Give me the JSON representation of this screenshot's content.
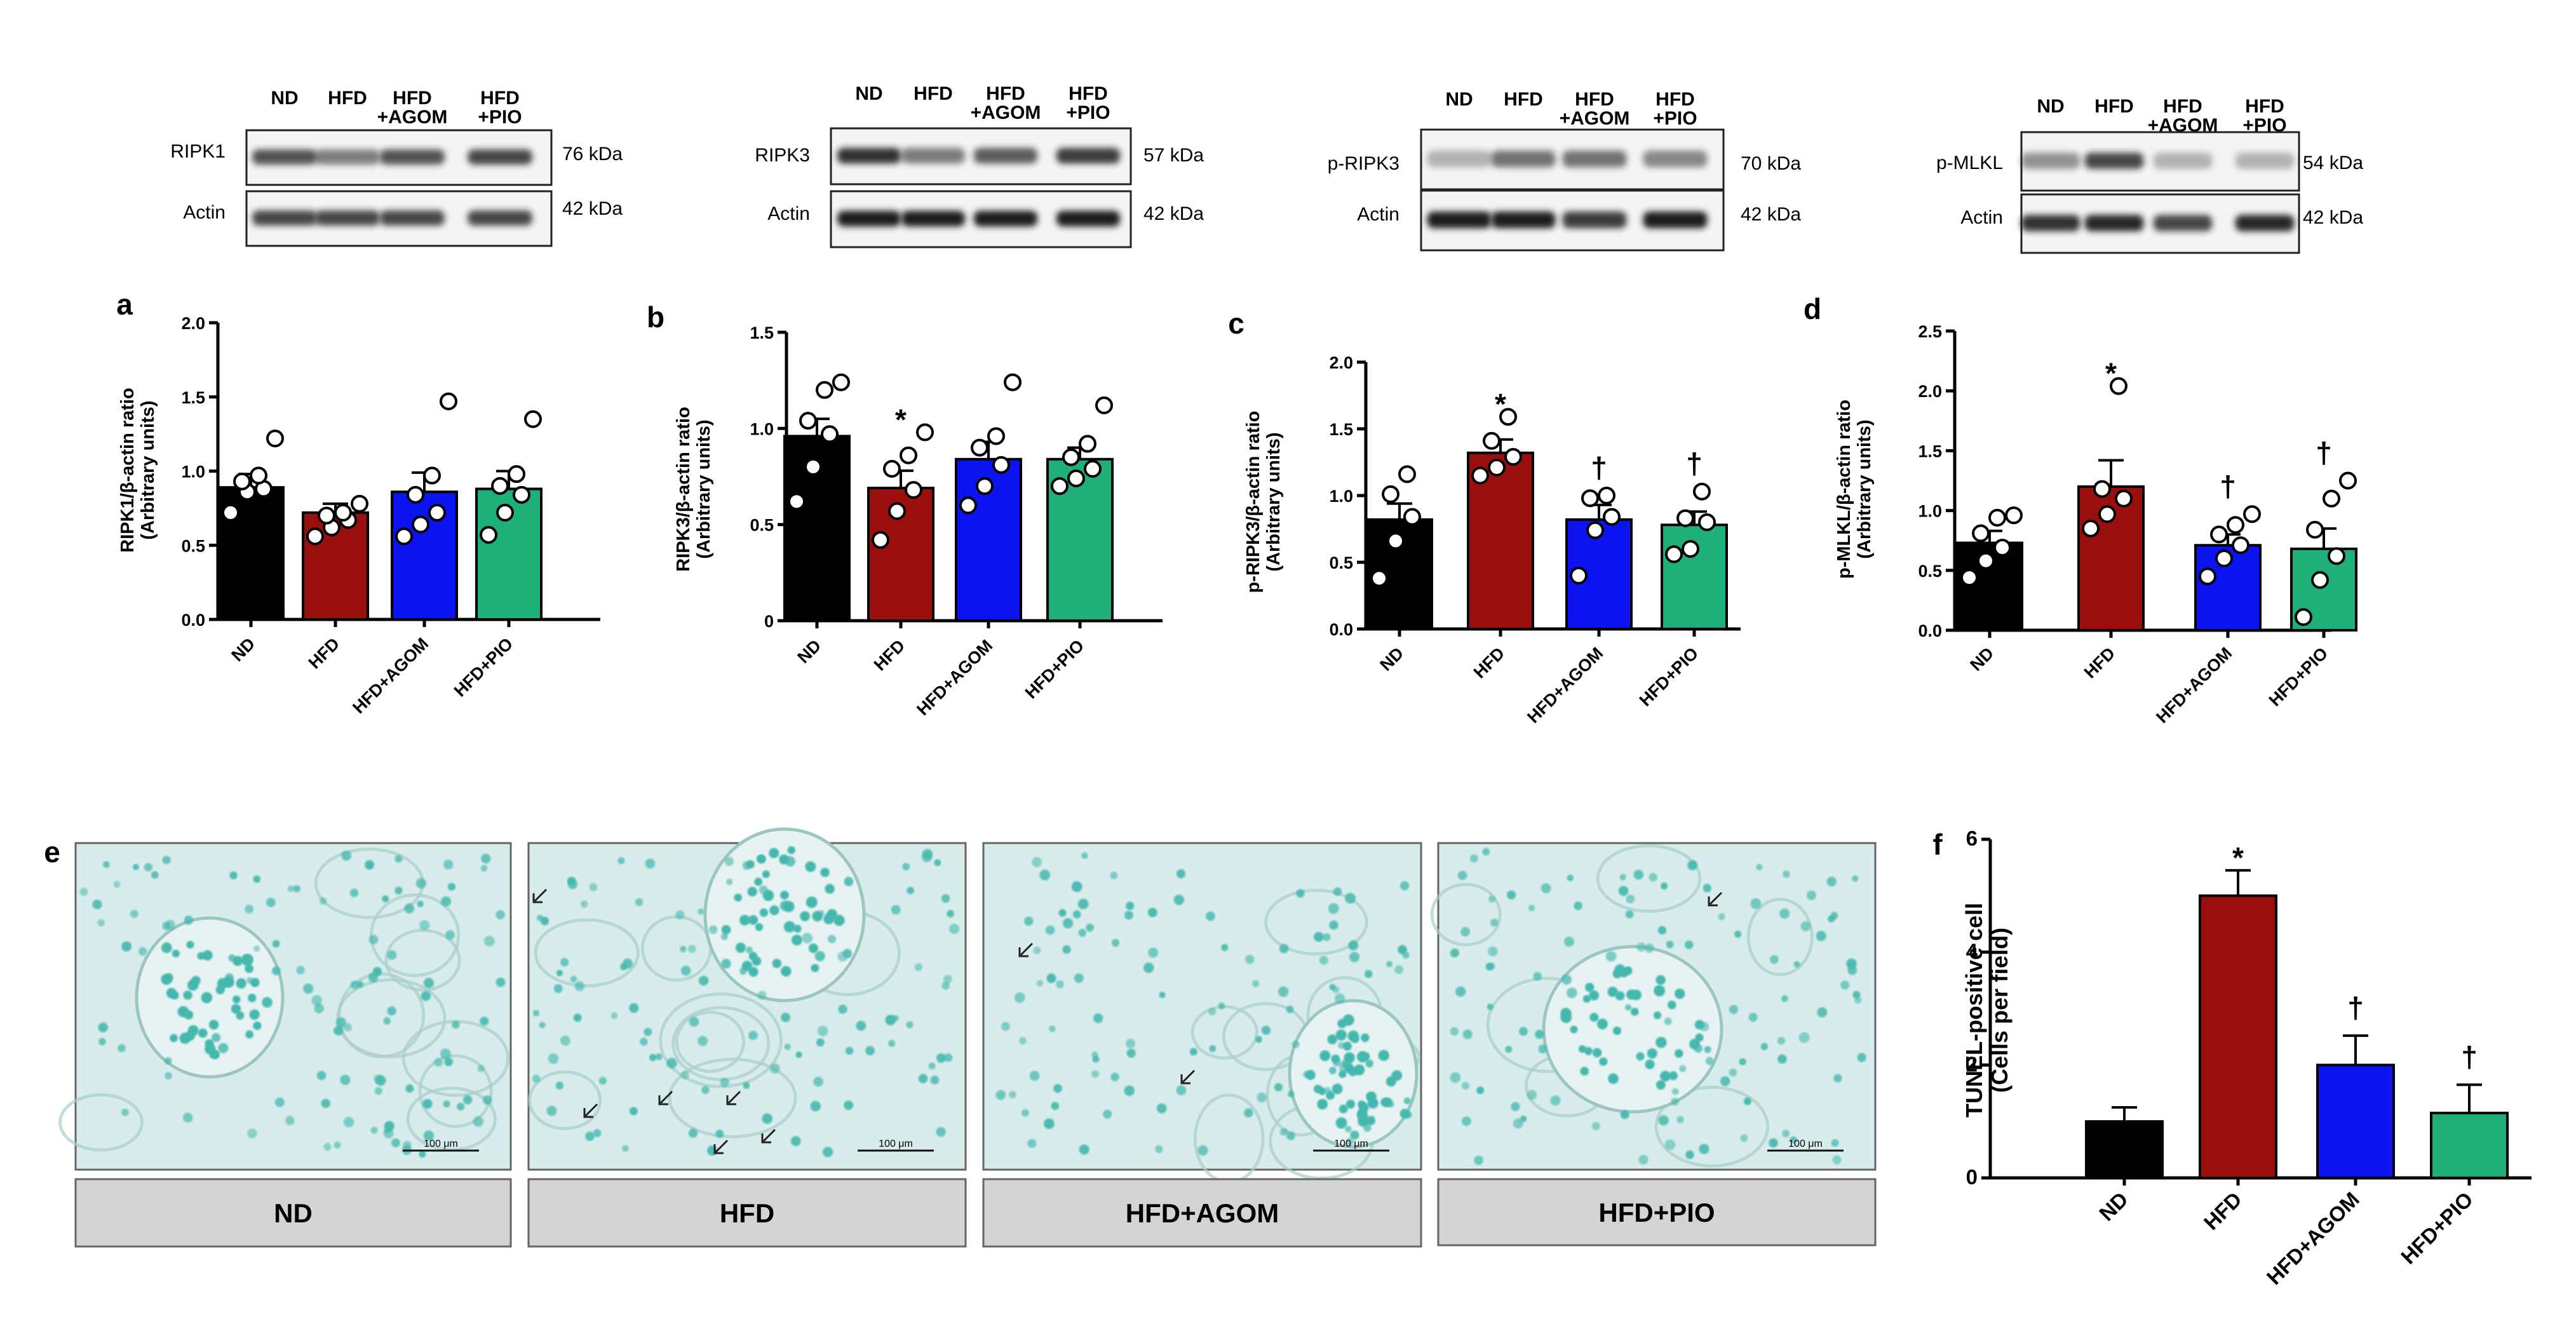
{
  "colors": {
    "ND": "#000000",
    "HFD": "#9b0e0e",
    "HFD+AGOM": "#0b14f0",
    "HFD+PIO": "#1fb07a",
    "micro_bg": "#d8ecec",
    "micro_nuclei": "#45b8ae",
    "caption_bg": "#d4d4d4"
  },
  "blots": [
    {
      "lanes": [
        "ND",
        "HFD",
        "HFD\n+AGOM",
        "HFD\n+PIO"
      ],
      "rows": [
        {
          "label": "RIPK1",
          "kda": "76 kDa"
        },
        {
          "label": "Actin",
          "kda": "42 kDa"
        }
      ]
    },
    {
      "lanes": [
        "ND",
        "HFD",
        "HFD\n+AGOM",
        "HFD\n+PIO"
      ],
      "rows": [
        {
          "label": "RIPK3",
          "kda": "57 kDa"
        },
        {
          "label": "Actin",
          "kda": "42 kDa"
        }
      ]
    },
    {
      "lanes": [
        "ND",
        "HFD",
        "HFD\n+AGOM",
        "HFD\n+PIO"
      ],
      "rows": [
        {
          "label": "p-RIPK3",
          "kda": "70 kDa"
        },
        {
          "label": "Actin",
          "kda": "42 kDa"
        }
      ]
    },
    {
      "lanes": [
        "ND",
        "HFD",
        "HFD\n+AGOM",
        "HFD\n+PIO"
      ],
      "rows": [
        {
          "label": "p-MLKL",
          "kda": "54 kDa"
        },
        {
          "label": "Actin",
          "kda": "42 kDa"
        }
      ]
    }
  ],
  "chart_data": [
    {
      "panel": "a",
      "type": "bar",
      "categories": [
        "ND",
        "HFD",
        "HFD+AGOM",
        "HFD+PIO"
      ],
      "values": [
        0.89,
        0.72,
        0.86,
        0.88
      ],
      "errors": [
        0.09,
        0.06,
        0.13,
        0.12
      ],
      "points": [
        [
          0.72,
          0.86,
          0.88,
          0.93,
          0.97,
          1.22
        ],
        [
          0.56,
          0.62,
          0.67,
          0.7,
          0.72,
          0.78
        ],
        [
          0.56,
          0.64,
          0.72,
          0.84,
          0.97,
          1.47
        ],
        [
          0.57,
          0.72,
          0.84,
          0.9,
          0.98,
          1.35
        ]
      ],
      "significance": [
        "",
        "",
        "",
        ""
      ],
      "ylabel": "RIPK1/β-actin ratio\n(Arbitrary units)",
      "ylim": [
        0,
        2.0
      ],
      "yticks": [
        "0.0",
        "0.5",
        "1.0",
        "1.5",
        "2.0"
      ]
    },
    {
      "panel": "b",
      "type": "bar",
      "categories": [
        "ND",
        "HFD",
        "HFD+AGOM",
        "HFD+PIO"
      ],
      "values": [
        0.96,
        0.69,
        0.84,
        0.84
      ],
      "errors": [
        0.09,
        0.09,
        0.09,
        0.06
      ],
      "points": [
        [
          0.62,
          0.8,
          0.97,
          1.04,
          1.2,
          1.24
        ],
        [
          0.42,
          0.57,
          0.68,
          0.79,
          0.86,
          0.98
        ],
        [
          0.6,
          0.7,
          0.81,
          0.9,
          0.96,
          1.24
        ],
        [
          0.7,
          0.74,
          0.79,
          0.85,
          0.92,
          1.12
        ]
      ],
      "significance": [
        "",
        "*",
        "",
        ""
      ],
      "ylabel": "RIPK3/β-actin ratio\n(Arbitrary units)",
      "ylim": [
        0,
        1.5
      ],
      "yticks": [
        "0",
        "0.5",
        "1.0",
        "1.5"
      ]
    },
    {
      "panel": "c",
      "type": "bar",
      "categories": [
        "ND",
        "HFD",
        "HFD+AGOM",
        "HFD+PIO"
      ],
      "values": [
        0.82,
        1.32,
        0.82,
        0.78
      ],
      "errors": [
        0.12,
        0.1,
        0.11,
        0.1
      ],
      "points": [
        [
          0.38,
          0.66,
          0.84,
          1.01,
          1.16
        ],
        [
          1.15,
          1.21,
          1.29,
          1.41,
          1.59
        ],
        [
          0.4,
          0.74,
          0.84,
          0.98,
          1.0
        ],
        [
          0.56,
          0.6,
          0.8,
          0.83,
          1.03
        ]
      ],
      "significance": [
        "",
        "*",
        "†",
        "†"
      ],
      "ylabel": "p-RIPK3/β-actin ratio\n(Arbitrary units)",
      "ylim": [
        0,
        2.0
      ],
      "yticks": [
        "0.0",
        "0.5",
        "1.0",
        "1.5",
        "2.0"
      ]
    },
    {
      "panel": "d",
      "type": "bar",
      "categories": [
        "ND",
        "HFD",
        "HFD+AGOM",
        "HFD+PIO"
      ],
      "values": [
        0.73,
        1.2,
        0.71,
        0.68
      ],
      "errors": [
        0.1,
        0.22,
        0.09,
        0.17
      ],
      "points": [
        [
          0.44,
          0.58,
          0.69,
          0.81,
          0.94,
          0.96
        ],
        [
          0.85,
          0.97,
          1.1,
          1.18,
          2.04
        ],
        [
          0.45,
          0.6,
          0.71,
          0.8,
          0.88,
          0.97
        ],
        [
          0.11,
          0.42,
          0.62,
          0.84,
          1.1,
          1.25
        ]
      ],
      "significance": [
        "",
        "*",
        "†",
        "†"
      ],
      "ylabel": "p-MLKL/β-actin ratio\n(Arbitrary units)",
      "ylim": [
        0,
        2.5
      ],
      "yticks": [
        "0.0",
        "0.5",
        "1.0",
        "1.5",
        "2.0",
        "2.5"
      ]
    },
    {
      "panel": "f",
      "type": "bar",
      "categories": [
        "ND",
        "HFD",
        "HFD+AGOM",
        "HFD+PIO"
      ],
      "values": [
        1.0,
        5.0,
        2.0,
        1.15
      ],
      "errors": [
        0.25,
        0.45,
        0.52,
        0.5
      ],
      "significance": [
        "",
        "*",
        "†",
        "†"
      ],
      "ylabel": "TUNEL-positive cell\n(Cells per field)",
      "ylim": [
        0,
        6
      ],
      "yticks": [
        "0",
        "2",
        "4",
        "6"
      ]
    }
  ],
  "micrographs": {
    "panel": "e",
    "scale_bar": "100 μm",
    "captions": [
      "ND",
      "HFD",
      "HFD+AGOM",
      "HFD+PIO"
    ]
  }
}
